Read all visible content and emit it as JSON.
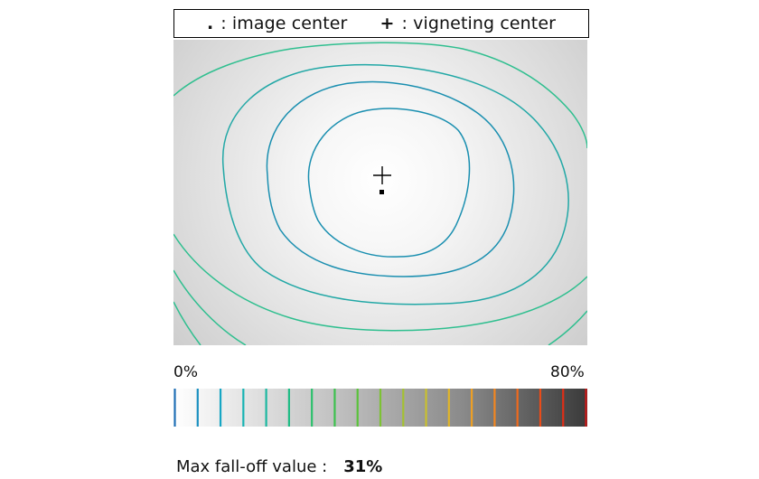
{
  "legend": {
    "image_center_symbol": ".",
    "image_center_label": ": image center",
    "vignetting_center_symbol": "+",
    "vignetting_center_label": ": vigneting center"
  },
  "scale": {
    "min_label": "0%",
    "max_label": "80%",
    "min_value": 0,
    "max_value": 80,
    "contour_step": 4,
    "line_colors": [
      "#1f6fb5",
      "#1990c0",
      "#16a6c4",
      "#17b3b3",
      "#1cb8a0",
      "#21bd86",
      "#2cc06c",
      "#3cc14e",
      "#59c23a",
      "#7dc235",
      "#a4c132",
      "#c9c02f",
      "#e0b52a",
      "#ec9f25",
      "#f28620",
      "#f06a1c",
      "#e94c19",
      "#de2e17",
      "#cc1616"
    ]
  },
  "result": {
    "label": "Max fall-off value :",
    "value": "31%",
    "max_falloff_percent": 31
  },
  "colors": {
    "contour_inner": "#1a8fb0",
    "contour_outer": "#2fbf8f"
  }
}
